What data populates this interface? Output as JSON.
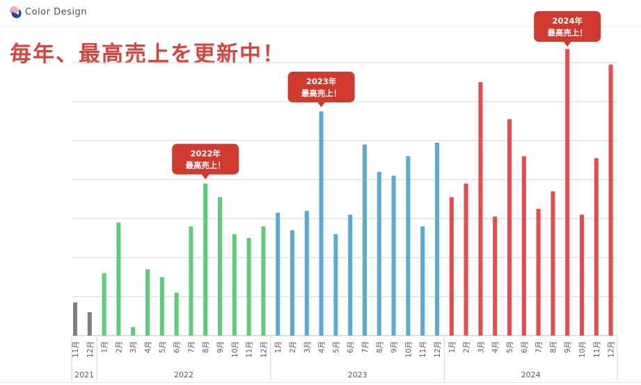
{
  "header": {
    "brand": "Color Design",
    "logo_colors": [
      "#f2a7c3",
      "#1f4e9a"
    ]
  },
  "headline": "毎年、最高売上を更新中！",
  "chart_data": {
    "type": "bar",
    "title": "毎年、最高売上を更新中！",
    "xlabel": "",
    "ylabel": "",
    "ylim": [
      0,
      7.2
    ],
    "grid": true,
    "legend": "none",
    "categories": [
      "11月",
      "12月",
      "1月",
      "2月",
      "3月",
      "4月",
      "5月",
      "6月",
      "7月",
      "8月",
      "9月",
      "10月",
      "11月",
      "12月",
      "1月",
      "2月",
      "3月",
      "4月",
      "5月",
      "6月",
      "7月",
      "8月",
      "9月",
      "10月",
      "11月",
      "12月",
      "1月",
      "2月",
      "3月",
      "4月",
      "5月",
      "6月",
      "7月",
      "8月",
      "9月",
      "10月",
      "11月",
      "12月"
    ],
    "values": [
      0.85,
      0.6,
      1.6,
      2.9,
      0.22,
      1.7,
      1.5,
      1.1,
      2.8,
      3.9,
      3.55,
      2.6,
      2.5,
      2.8,
      3.15,
      2.7,
      3.2,
      5.75,
      2.6,
      3.1,
      4.9,
      4.2,
      4.1,
      4.6,
      2.8,
      4.95,
      3.55,
      3.9,
      6.5,
      3.05,
      5.55,
      4.6,
      3.25,
      3.7,
      7.35,
      3.1,
      4.55,
      6.95
    ],
    "years": [
      {
        "label": "2021",
        "count": 2,
        "color": "#7f7f7f"
      },
      {
        "label": "2022",
        "count": 12,
        "color": "#5ccc76"
      },
      {
        "label": "2023",
        "count": 12,
        "color": "#5aaad6"
      },
      {
        "label": "2024",
        "count": 12,
        "color": "#e84b4b"
      }
    ],
    "annotations": [
      {
        "year": "2022年",
        "text": "最高売上！",
        "bar_index": 9
      },
      {
        "year": "2023年",
        "text": "最高売上！",
        "bar_index": 17
      },
      {
        "year": "2024年",
        "text": "最高売上！",
        "bar_index": 34
      }
    ],
    "annotation_color": "#d1392f"
  }
}
